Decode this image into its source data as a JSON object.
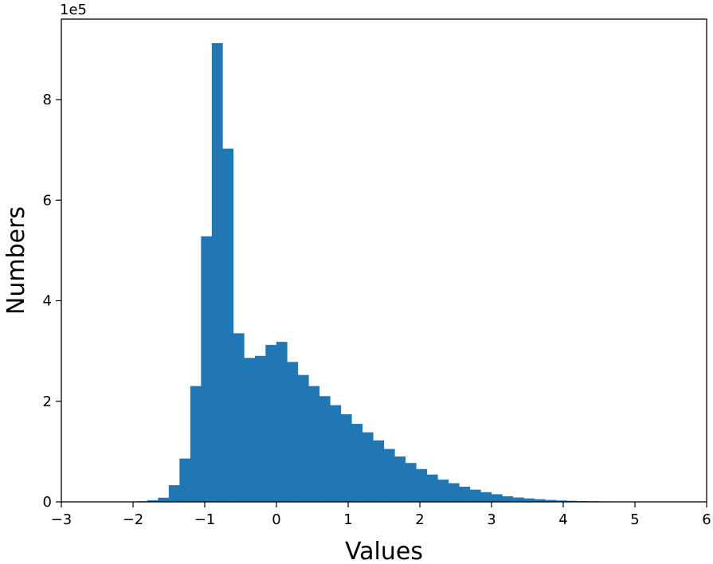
{
  "chart_data": {
    "type": "bar",
    "xlabel": "Values",
    "ylabel": "Numbers",
    "y_offset_label": "1e5",
    "xlim": [
      -3,
      6
    ],
    "ylim": [
      0,
      9.6
    ],
    "xticks": [
      -3,
      -2,
      -1,
      0,
      1,
      2,
      3,
      4,
      5,
      6
    ],
    "xtick_labels": [
      "−3",
      "−2",
      "−1",
      "0",
      "1",
      "2",
      "3",
      "4",
      "5",
      "6"
    ],
    "yticks": [
      0,
      2,
      4,
      6,
      8
    ],
    "ytick_labels": [
      "0",
      "2",
      "4",
      "6",
      "8"
    ],
    "grid": false,
    "legend": "none",
    "color": "#2077b4",
    "bin_edges": [
      -1.95,
      -1.8,
      -1.65,
      -1.5,
      -1.35,
      -1.2,
      -1.05,
      -0.9,
      -0.75,
      -0.6,
      -0.45,
      -0.3,
      -0.15,
      0.0,
      0.15,
      0.3,
      0.45,
      0.6,
      0.75,
      0.9,
      1.05,
      1.2,
      1.35,
      1.5,
      1.65,
      1.8,
      1.95,
      2.1,
      2.25,
      2.4,
      2.55,
      2.7,
      2.85,
      3.0,
      3.15,
      3.3,
      3.45,
      3.6,
      3.75,
      3.9,
      4.05,
      4.2,
      4.35,
      4.5,
      4.65,
      4.8,
      4.95,
      5.1,
      5.25,
      5.4,
      5.55,
      5.7,
      5.85,
      6.0
    ],
    "values": [
      0.01,
      0.03,
      0.08,
      0.33,
      0.86,
      2.3,
      5.28,
      9.12,
      7.02,
      3.35,
      2.86,
      2.9,
      3.12,
      3.18,
      2.78,
      2.52,
      2.3,
      2.1,
      1.92,
      1.74,
      1.55,
      1.38,
      1.22,
      1.05,
      0.9,
      0.77,
      0.65,
      0.54,
      0.44,
      0.37,
      0.3,
      0.24,
      0.19,
      0.15,
      0.11,
      0.085,
      0.065,
      0.05,
      0.035,
      0.025,
      0.018,
      0.013,
      0.01,
      0.007,
      0.005,
      0.004,
      0.003,
      0.002,
      0.002,
      0.001,
      0.001,
      0.001,
      0.001
    ]
  }
}
